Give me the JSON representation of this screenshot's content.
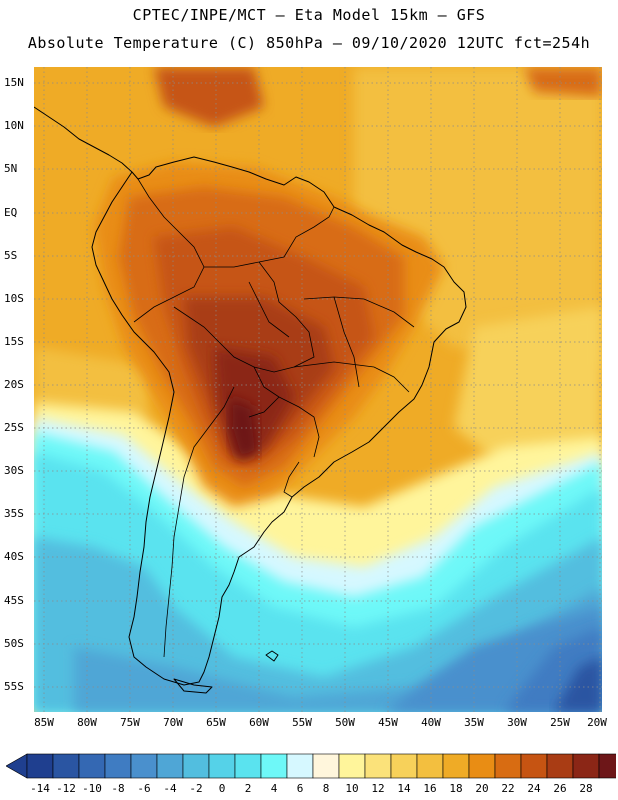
{
  "header": {
    "line1": "CPTEC/INPE/MCT —  Eta Model 15km — GFS",
    "line2": "Absolute Temperature (C) 850hPa — 09/10/2020 12UTC fct=254h"
  },
  "axes": {
    "lat_labels": [
      "15N",
      "10N",
      "5N",
      "EQ",
      "5S",
      "10S",
      "15S",
      "20S",
      "25S",
      "30S",
      "35S",
      "40S",
      "45S",
      "50S",
      "55S"
    ],
    "lon_labels": [
      "85W",
      "80W",
      "75W",
      "70W",
      "65W",
      "60W",
      "55W",
      "50W",
      "45W",
      "40W",
      "35W",
      "30W",
      "25W",
      "20W"
    ]
  },
  "colorbar": {
    "ticks": [
      "-14",
      "-12",
      "-10",
      "-8",
      "-6",
      "-4",
      "-2",
      "0",
      "2",
      "4",
      "6",
      "8",
      "10",
      "12",
      "14",
      "16",
      "18",
      "20",
      "22",
      "24",
      "26",
      "28"
    ],
    "colors": [
      "#1f3f8f",
      "#2a55a2",
      "#3468b3",
      "#3f7cc2",
      "#4a90cd",
      "#4fa6d6",
      "#52bedf",
      "#55d2e8",
      "#5ae3ef",
      "#6ef8f8",
      "#d6f8ff",
      "#fff6dc",
      "#fff59b",
      "#fbe27a",
      "#f7d15a",
      "#f3bf3f",
      "#efab26",
      "#e98d14",
      "#d86c12",
      "#c65412",
      "#a93c14",
      "#8b2616",
      "#6d1618"
    ],
    "under_color": "#1f3f8f",
    "over_color": "#6d0d2e"
  }
}
